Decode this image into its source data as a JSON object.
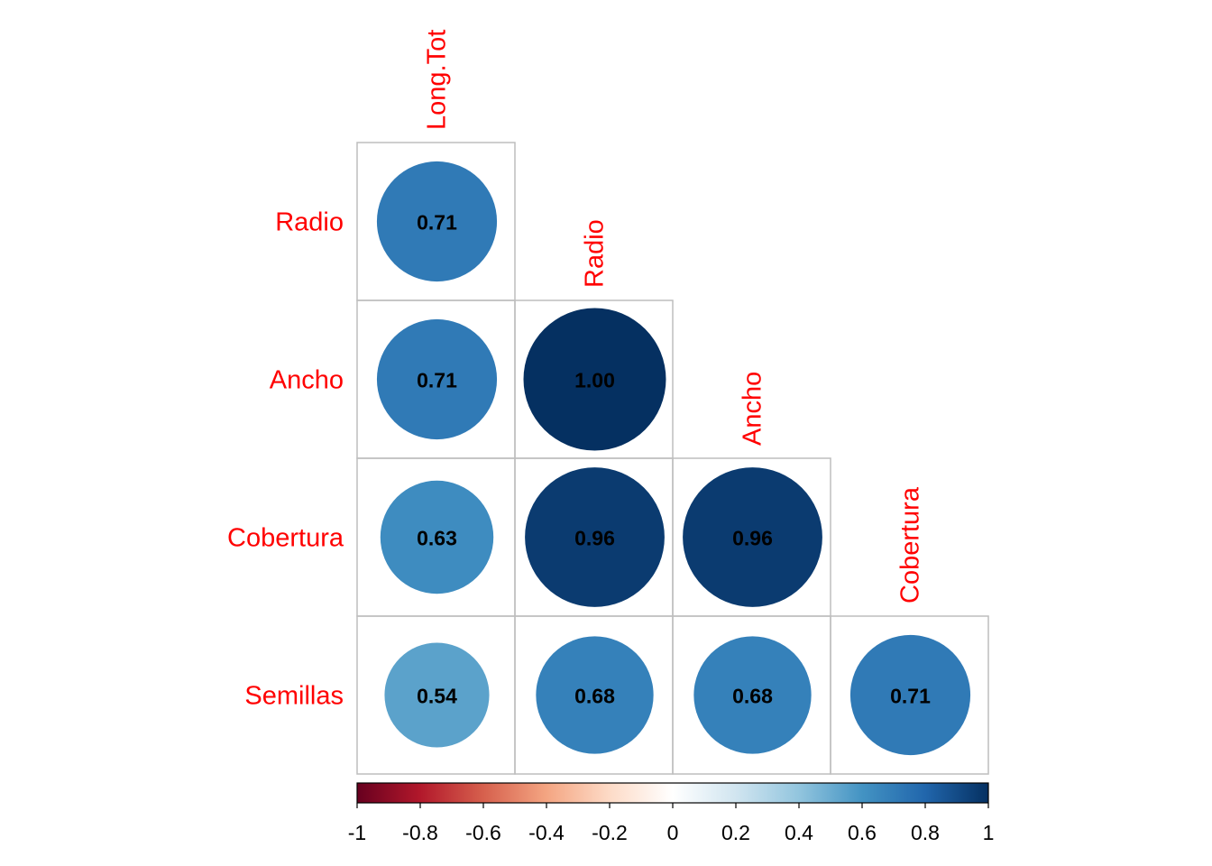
{
  "chart_data": {
    "type": "heatmap",
    "style": "lower-triangle correlation plot (circles)",
    "row_labels": [
      "Radio",
      "Ancho",
      "Cobertura",
      "Semillas"
    ],
    "col_labels": [
      "Long.Tot",
      "Radio",
      "Ancho",
      "Cobertura"
    ],
    "cells": [
      {
        "row": 0,
        "col": 0,
        "value": 0.71,
        "label": "0.71"
      },
      {
        "row": 1,
        "col": 0,
        "value": 0.71,
        "label": "0.71"
      },
      {
        "row": 1,
        "col": 1,
        "value": 1.0,
        "label": "1.00"
      },
      {
        "row": 2,
        "col": 0,
        "value": 0.63,
        "label": "0.63"
      },
      {
        "row": 2,
        "col": 1,
        "value": 0.96,
        "label": "0.96"
      },
      {
        "row": 2,
        "col": 2,
        "value": 0.96,
        "label": "0.96"
      },
      {
        "row": 3,
        "col": 0,
        "value": 0.54,
        "label": "0.54"
      },
      {
        "row": 3,
        "col": 1,
        "value": 0.68,
        "label": "0.68"
      },
      {
        "row": 3,
        "col": 2,
        "value": 0.68,
        "label": "0.68"
      },
      {
        "row": 3,
        "col": 3,
        "value": 0.71,
        "label": "0.71"
      }
    ],
    "colorbar": {
      "range": [
        -1,
        1
      ],
      "ticks": [
        -1,
        -0.8,
        -0.6,
        -0.4,
        -0.2,
        0,
        0.2,
        0.4,
        0.6,
        0.8,
        1
      ],
      "tick_labels": [
        "-1",
        "-0.8",
        "-0.6",
        "-0.4",
        "-0.2",
        "0",
        "0.2",
        "0.4",
        "0.6",
        "0.8",
        "1"
      ],
      "palette": [
        "#67001F",
        "#B2182B",
        "#D6604D",
        "#F4A582",
        "#FDDBC7",
        "#FFFFFF",
        "#D1E5F0",
        "#92C5DE",
        "#4393C3",
        "#2166AC",
        "#053061"
      ]
    },
    "label_color": "#FF0000",
    "grid_color": "#BEBEBE"
  }
}
